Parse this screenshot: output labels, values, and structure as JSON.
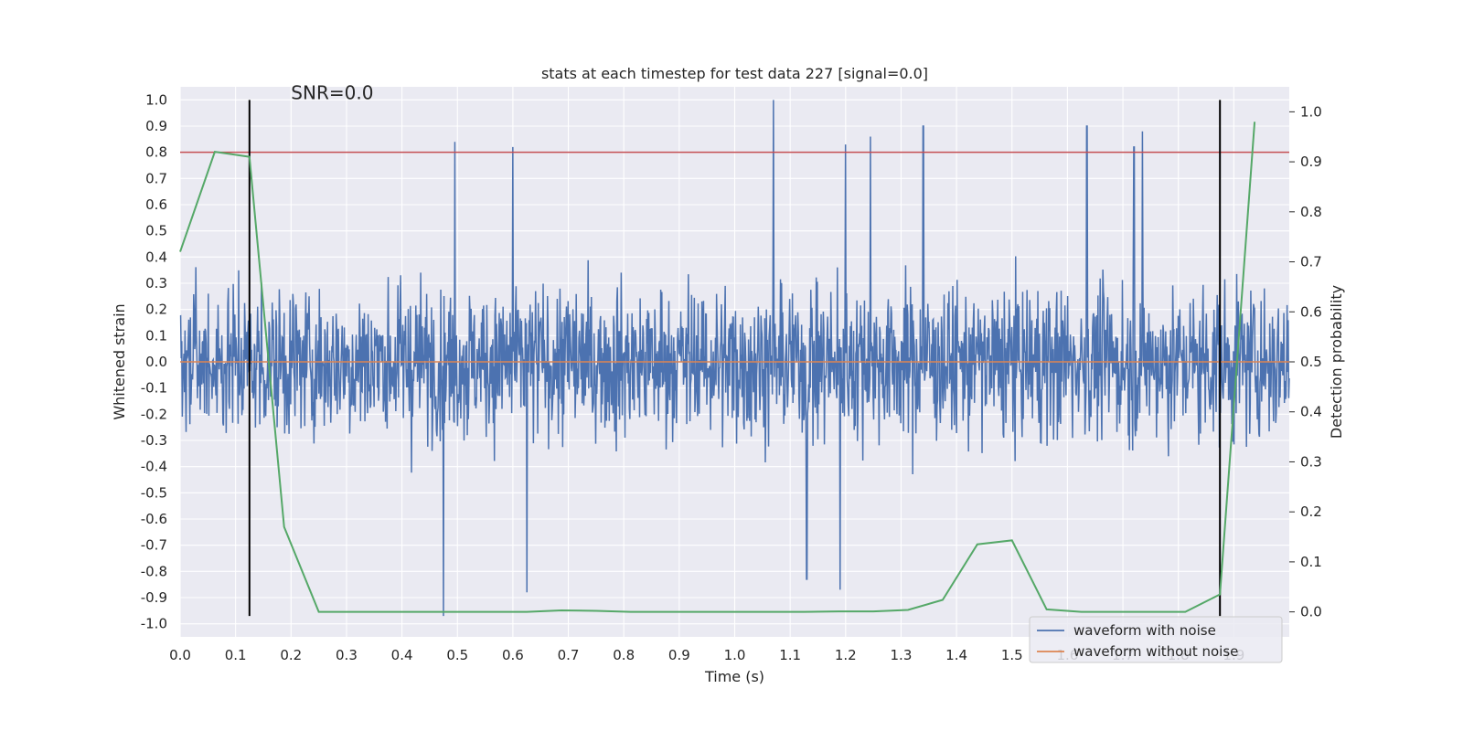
{
  "chart_data": {
    "type": "line",
    "title": "stats at each timestep for test data 227 [signal=0.0]",
    "xlabel": "Time (s)",
    "ylabel": "Whitened strain",
    "y2label": "Detection probability",
    "xlim": [
      0.0,
      2.0
    ],
    "ylim": [
      -1.05,
      1.05
    ],
    "y2lim": [
      -0.05,
      1.05
    ],
    "x_ticks": [
      "0.0",
      "0.1",
      "0.2",
      "0.3",
      "0.4",
      "0.5",
      "0.6",
      "0.7",
      "0.8",
      "0.9",
      "1.0",
      "1.1",
      "1.2",
      "1.3",
      "1.4",
      "1.5",
      "1.6",
      "1.7",
      "1.8",
      "1.9"
    ],
    "y_ticks": [
      "1.0",
      "0.9",
      "0.8",
      "0.7",
      "0.6",
      "0.5",
      "0.4",
      "0.3",
      "0.2",
      "0.1",
      "0.0",
      "-0.1",
      "-0.2",
      "-0.3",
      "-0.4",
      "-0.5",
      "-0.6",
      "-0.7",
      "-0.8",
      "-0.9",
      "-1.0"
    ],
    "y2_ticks": [
      "1.0",
      "0.9",
      "0.8",
      "0.7",
      "0.6",
      "0.5",
      "0.4",
      "0.3",
      "0.2",
      "0.1",
      "0.0"
    ],
    "annotation": "SNR=0.0",
    "grid": true,
    "legend_position": "bottom-right",
    "colors": {
      "noise": "#4c72b0",
      "clean": "#dd8452",
      "probability": "#55a868",
      "threshold": "#c44e52",
      "marker": "#000000",
      "background": "#eaeaf2"
    },
    "series": [
      {
        "name": "waveform with noise",
        "kind": "noise",
        "samples": 2048,
        "amplitude_range": [
          -0.97,
          1.0
        ],
        "notable_peaks": [
          {
            "x": 0.495,
            "y": 0.84
          },
          {
            "x": 0.6,
            "y": 0.82
          },
          {
            "x": 1.07,
            "y": 1.0
          },
          {
            "x": 1.2,
            "y": 0.83
          },
          {
            "x": 1.245,
            "y": 0.86
          },
          {
            "x": 1.34,
            "y": 0.9
          },
          {
            "x": 1.635,
            "y": 0.9
          },
          {
            "x": 1.72,
            "y": 0.82
          },
          {
            "x": 1.735,
            "y": 0.88
          },
          {
            "x": 0.475,
            "y": -0.97
          },
          {
            "x": 0.625,
            "y": -0.88
          },
          {
            "x": 1.13,
            "y": -0.83
          },
          {
            "x": 1.19,
            "y": -0.87
          }
        ]
      },
      {
        "name": "waveform without noise",
        "kind": "flat",
        "x": [
          0.0,
          2.0
        ],
        "y": [
          0.0,
          0.0
        ]
      },
      {
        "name": "detection probability",
        "axis": "y2",
        "x": [
          0.0,
          0.0625,
          0.125,
          0.1875,
          0.25,
          0.3125,
          0.375,
          0.4375,
          0.5,
          0.5625,
          0.625,
          0.6875,
          0.75,
          0.8125,
          0.875,
          0.9375,
          1.0,
          1.0625,
          1.125,
          1.1875,
          1.25,
          1.3125,
          1.375,
          1.4375,
          1.5,
          1.5625,
          1.625,
          1.6875,
          1.75,
          1.8125,
          1.875,
          1.9375
        ],
        "y": [
          0.72,
          0.92,
          0.91,
          0.17,
          0.0,
          0.0,
          0.0,
          0.0,
          0.0,
          0.0,
          0.0,
          0.003,
          0.002,
          0.0,
          0.0,
          0.0,
          0.0,
          0.0,
          0.0,
          0.001,
          0.001,
          0.004,
          0.024,
          0.135,
          0.143,
          0.005,
          0.0,
          0.0,
          0.0,
          0.0,
          0.035,
          0.98
        ]
      }
    ],
    "hlines": [
      {
        "axis": "y",
        "y": 0.8,
        "name": "threshold"
      }
    ],
    "vlines": [
      {
        "x": 0.125,
        "ymin": -0.97,
        "ymax": 1.0
      },
      {
        "x": 1.875,
        "ymin": -0.97,
        "ymax": 1.0
      }
    ],
    "legend": [
      "waveform with noise",
      "waveform without noise"
    ]
  }
}
